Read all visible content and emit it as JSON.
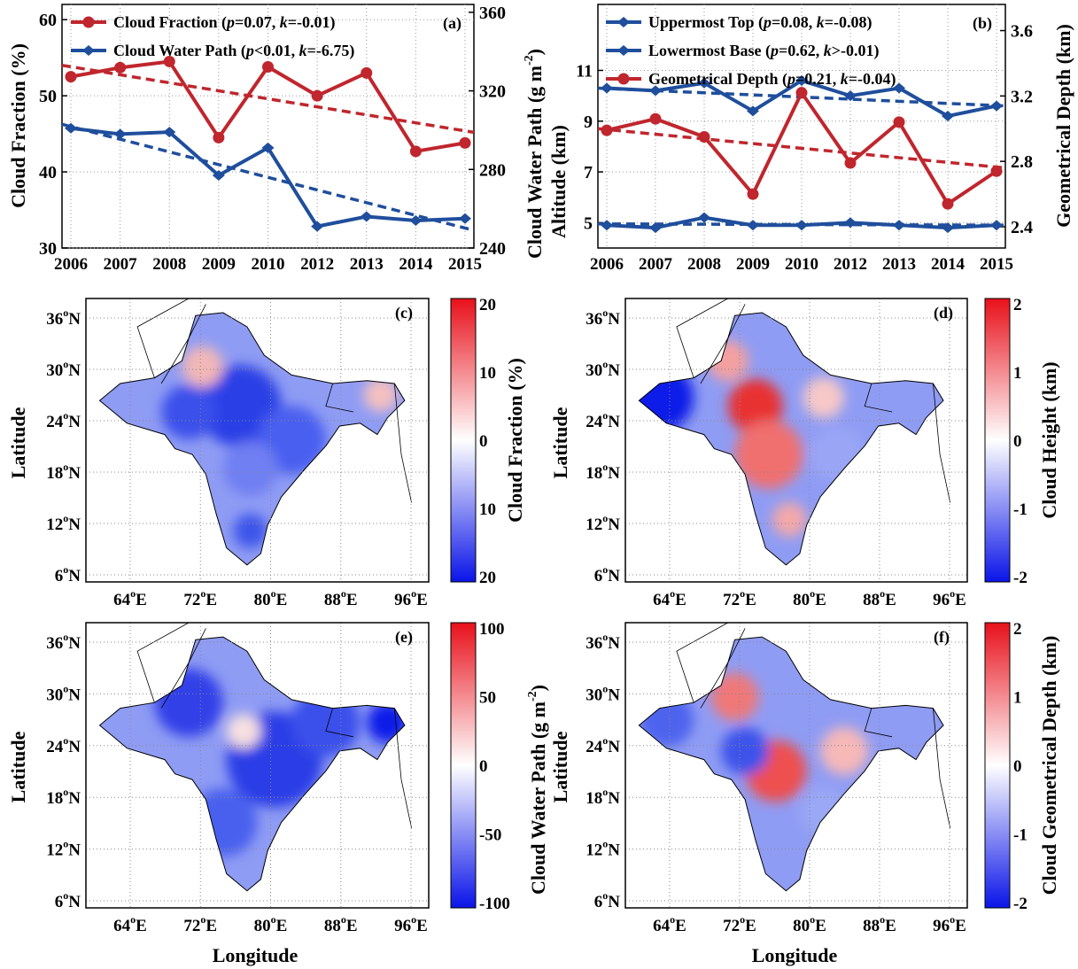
{
  "colors": {
    "red": "#c0262d",
    "blue": "#1f4e9c",
    "cb_red": "#ff0000",
    "cb_blue": "#0000ff"
  },
  "chart_data": [
    {
      "panel": "(a)",
      "type": "line",
      "x": [
        "2006",
        "2007",
        "2008",
        "2009",
        "2010",
        "2012",
        "2013",
        "2014",
        "2015"
      ],
      "ylabel": "Cloud Fraction (%)",
      "y2label": "Cloud Water Path (g m-2)",
      "ylim": [
        30,
        62
      ],
      "y2lim": [
        240,
        364
      ],
      "yticks": [
        "30",
        "40",
        "50",
        "60"
      ],
      "y2ticks": [
        "240",
        "280",
        "320",
        "360"
      ],
      "legend": [
        "Cloud Fraction (p=0.07, k=-0.01)",
        "Cloud Water Path (p<0.01, k=-6.75)"
      ],
      "series": [
        {
          "name": "Cloud Fraction",
          "axis": "left",
          "color": "red",
          "values": [
            52.5,
            53.7,
            54.5,
            44.5,
            53.8,
            50.0,
            53.0,
            42.7,
            43.8
          ],
          "trend": [
            54.0,
            45.2
          ]
        },
        {
          "name": "Cloud Water Path",
          "axis": "right",
          "color": "blue",
          "values": [
            301,
            298,
            299,
            277,
            291,
            251,
            256,
            254,
            255
          ],
          "trend": [
            303,
            249
          ]
        }
      ]
    },
    {
      "panel": "(b)",
      "type": "line",
      "x": [
        "2006",
        "2007",
        "2008",
        "2009",
        "2010",
        "2012",
        "2013",
        "2014",
        "2015"
      ],
      "ylabel": "Altitude (km)",
      "y2label": "Geometrical Depth (km)",
      "ylim": [
        4,
        13.6
      ],
      "y2lim": [
        2.27,
        3.76
      ],
      "yticks": [
        "5",
        "7",
        "9",
        "11"
      ],
      "y2ticks": [
        "2.4",
        "2.8",
        "3.2",
        "3.6"
      ],
      "legend": [
        "Uppermost Top (p=0.08, k=-0.08)",
        "Lowermost Base (p=0.62, k>-0.01)",
        "Geometrical Depth (p=0.21, k=-0.04)"
      ],
      "series": [
        {
          "name": "Uppermost Top",
          "axis": "left",
          "color": "blue",
          "values": [
            10.3,
            10.2,
            10.5,
            9.4,
            10.6,
            10.0,
            10.3,
            9.2,
            9.6
          ],
          "trend": [
            10.3,
            9.6
          ]
        },
        {
          "name": "Lowermost Base",
          "axis": "left",
          "color": "blue",
          "values": [
            4.9,
            4.8,
            5.2,
            4.9,
            4.9,
            5.0,
            4.9,
            4.8,
            4.9
          ],
          "trend": [
            4.95,
            4.9
          ]
        },
        {
          "name": "Geometrical Depth",
          "axis": "right",
          "color": "red",
          "values": [
            2.99,
            3.06,
            2.95,
            2.6,
            3.22,
            2.79,
            3.04,
            2.54,
            2.74
          ],
          "trend": [
            3.0,
            2.76
          ]
        }
      ]
    }
  ],
  "maps": {
    "lat_ticks": [
      "36",
      "30",
      "24",
      "18",
      "12",
      "6"
    ],
    "lon_ticks": [
      "64",
      "72",
      "80",
      "88",
      "96"
    ],
    "xlabel": "Longitude",
    "ylabel": "Latitude",
    "panels": [
      {
        "label": "(c)",
        "cblabel": "Cloud Fraction (%)",
        "cbticks": [
          "20",
          "10",
          "0",
          "10",
          "20"
        ]
      },
      {
        "label": "(d)",
        "cblabel": "Cloud Height (km)",
        "cbticks": [
          "2",
          "1",
          "0",
          "-1",
          "-2"
        ]
      },
      {
        "label": "(e)",
        "cblabel": "Cloud Water Path (g m-2)",
        "cbticks": [
          "100",
          "50",
          "0",
          "-50",
          "-100"
        ]
      },
      {
        "label": "(f)",
        "cblabel": "Cloud Geometrical Depth (km)",
        "cbticks": [
          "2",
          "1",
          "0",
          "-1",
          "-2"
        ]
      }
    ]
  }
}
